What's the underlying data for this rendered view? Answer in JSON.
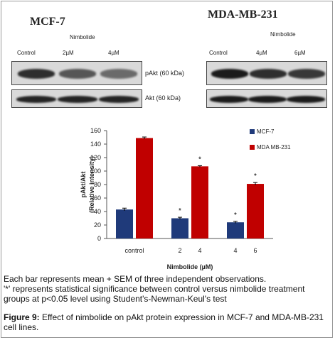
{
  "panels": {
    "left": {
      "cell_line": "MCF-7",
      "treatment": "Nimbolide",
      "lanes": [
        "Control",
        "2µM",
        "4µM"
      ],
      "pakt_band_intensity": [
        0.85,
        0.65,
        0.55
      ],
      "akt_band_intensity": [
        0.9,
        0.9,
        0.9
      ]
    },
    "right": {
      "cell_line": "MDA-MB-231",
      "treatment": "Nimbolide",
      "lanes": [
        "Control",
        "4µM",
        "6µM"
      ],
      "pakt_band_intensity": [
        0.95,
        0.85,
        0.8
      ],
      "akt_band_intensity": [
        0.95,
        0.95,
        0.95
      ]
    },
    "pakt_label": "pAkt (60 kDa)",
    "akt_label": "Akt (60 kDa)"
  },
  "chart_data": {
    "type": "bar",
    "ylabel": "pAkt/Akt\n(Relative intensity)",
    "xlabel": "Nimbolide (µM)",
    "ylim": [
      0,
      160
    ],
    "yticks": [
      0,
      20,
      40,
      60,
      80,
      100,
      120,
      140,
      160
    ],
    "groups": [
      {
        "label": "control",
        "bar_labels": [
          "",
          ""
        ]
      },
      {
        "label": "",
        "bar_labels": [
          "2",
          "4"
        ]
      },
      {
        "label": "",
        "bar_labels": [
          "4",
          "6"
        ]
      }
    ],
    "series": [
      {
        "name": "MCF-7",
        "color": "#1f3a7a",
        "values": [
          43,
          30,
          24
        ],
        "errors": [
          2,
          1.5,
          1.5
        ],
        "significant": [
          false,
          true,
          true
        ]
      },
      {
        "name": "MDA MB-231",
        "color": "#c00000",
        "values": [
          149,
          107,
          81
        ],
        "errors": [
          1.5,
          1,
          2
        ],
        "significant": [
          false,
          true,
          true
        ]
      }
    ],
    "significance_mark": "*",
    "legend_position": "top-right"
  },
  "caption": {
    "line1": "Each bar represents mean + SEM of three independent observations.",
    "line2": "'*' represents statistical significance between control versus nimbolide treatment groups at p<0.05 level using Student's-Newman-Keul's test",
    "figure_label": "Figure 9:",
    "figure_text": "Effect of nimbolide on pAkt protein expression in MCF-7 and MDA-MB-231 cell lines."
  }
}
